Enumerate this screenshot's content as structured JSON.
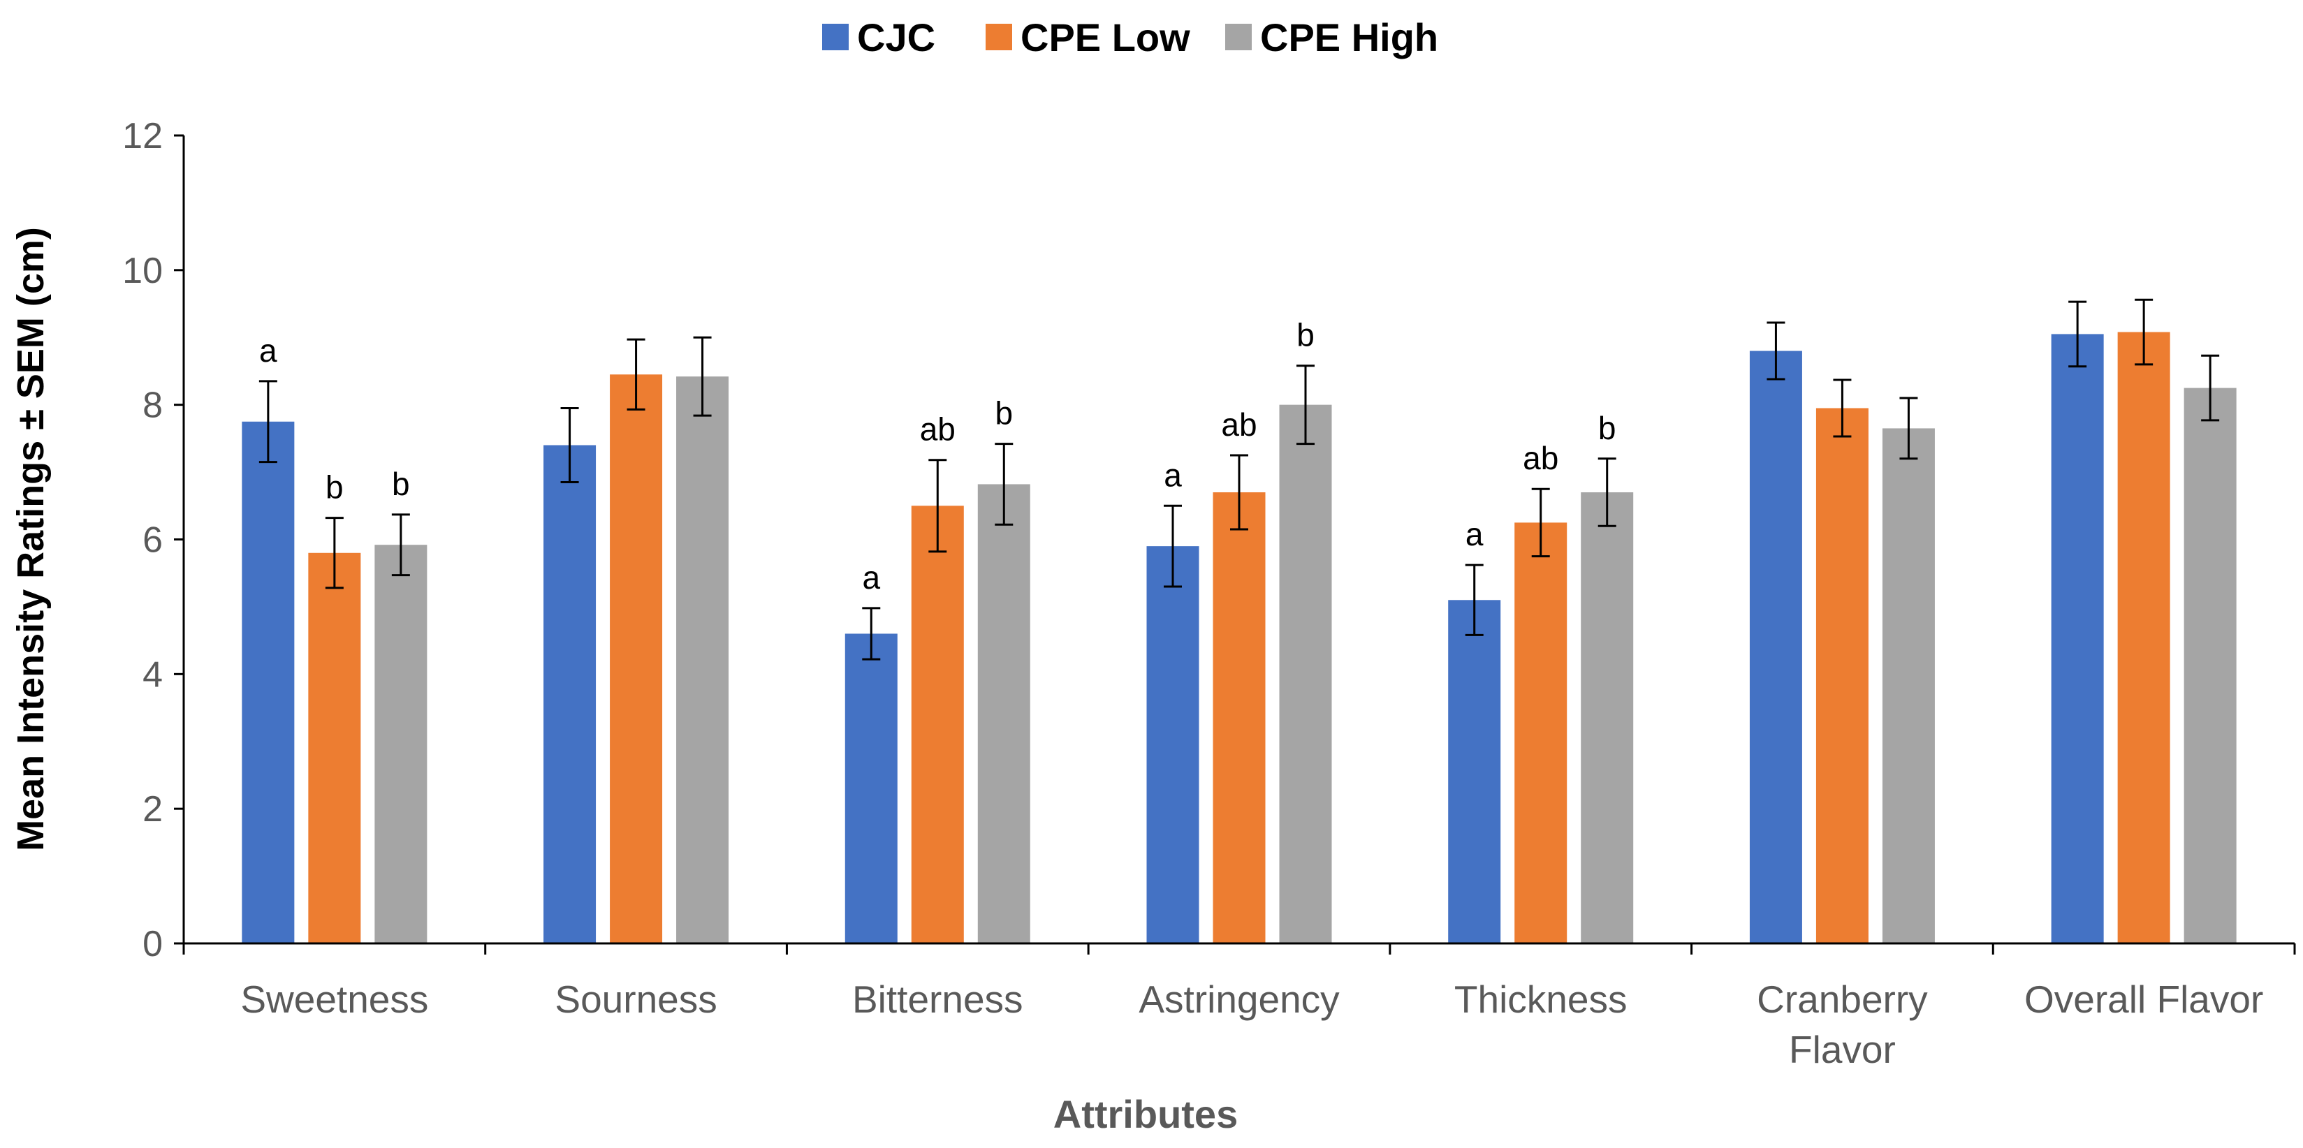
{
  "chart_data": {
    "type": "bar",
    "title": "",
    "xlabel": "Attributes",
    "ylabel": "Mean Intensity Ratings ± SEM (cm)",
    "ylim": [
      0,
      12
    ],
    "yticks": [
      0,
      2,
      4,
      6,
      8,
      10,
      12
    ],
    "grid": false,
    "legend_position": "top-center",
    "categories": [
      [
        "Sweetness"
      ],
      [
        "Sourness"
      ],
      [
        "Bitterness"
      ],
      [
        "Astringency"
      ],
      [
        "Thickness"
      ],
      [
        "Cranberry",
        "Flavor"
      ],
      [
        "Overall Flavor"
      ]
    ],
    "series": [
      {
        "name": "CJC",
        "color": "#4472C4",
        "values": [
          7.75,
          7.4,
          4.6,
          5.9,
          5.1,
          8.8,
          9.05
        ],
        "errors": [
          0.6,
          0.55,
          0.38,
          0.6,
          0.52,
          0.42,
          0.48
        ],
        "labels": [
          "a",
          "",
          "a",
          "a",
          "a",
          "",
          ""
        ]
      },
      {
        "name": "CPE Low",
        "color": "#ED7D31",
        "values": [
          5.8,
          8.45,
          6.5,
          6.7,
          6.25,
          7.95,
          9.08
        ],
        "errors": [
          0.52,
          0.52,
          0.68,
          0.55,
          0.5,
          0.42,
          0.48
        ],
        "labels": [
          "b",
          "",
          "ab",
          "ab",
          "ab",
          "",
          ""
        ]
      },
      {
        "name": "CPE High",
        "color": "#A5A5A5",
        "values": [
          5.92,
          8.42,
          6.82,
          8.0,
          6.7,
          7.65,
          8.25
        ],
        "errors": [
          0.45,
          0.58,
          0.6,
          0.58,
          0.5,
          0.45,
          0.48
        ],
        "labels": [
          "b",
          "",
          "b",
          "b",
          "b",
          "",
          ""
        ]
      }
    ]
  }
}
